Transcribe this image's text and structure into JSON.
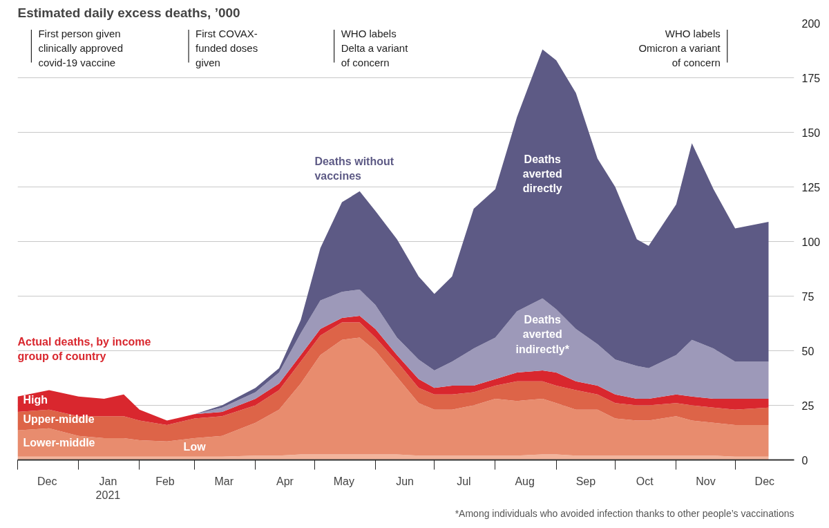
{
  "chart_data": {
    "type": "area",
    "stacked": true,
    "title": "Estimated daily excess deaths, ’000",
    "x": [
      "2020-12-01",
      "2020-12-17",
      "2021-01-01",
      "2021-01-14",
      "2021-01-24",
      "2021-02-01",
      "2021-02-15",
      "2021-03-01",
      "2021-03-15",
      "2021-04-01",
      "2021-04-13",
      "2021-04-24",
      "2021-05-04",
      "2021-05-15",
      "2021-05-24",
      "2021-06-01",
      "2021-06-12",
      "2021-06-23",
      "2021-07-01",
      "2021-07-10",
      "2021-07-21",
      "2021-08-01",
      "2021-08-12",
      "2021-08-25",
      "2021-09-01",
      "2021-09-11",
      "2021-09-22",
      "2021-10-01",
      "2021-10-12",
      "2021-10-18",
      "2021-11-01",
      "2021-11-09",
      "2021-11-20",
      "2021-12-01",
      "2021-12-18"
    ],
    "series": [
      {
        "name": "Low",
        "color": "#f2b49c",
        "values": [
          1.5,
          1.5,
          1.5,
          1.5,
          1.5,
          1.5,
          1.5,
          1.5,
          1.5,
          2,
          2,
          2.5,
          2.5,
          2.5,
          2.5,
          2.5,
          2.5,
          2,
          2,
          2,
          2,
          2,
          2,
          2.5,
          2.5,
          2,
          2,
          2,
          2,
          2,
          2,
          2,
          2,
          1.5,
          1.5
        ]
      },
      {
        "name": "Lower-middle",
        "color": "#e88c6e",
        "values": [
          12,
          13,
          9.5,
          8.5,
          8.5,
          7.5,
          7,
          8.5,
          9.5,
          15,
          21,
          32.5,
          45.5,
          52.5,
          53.5,
          47.5,
          35.5,
          24,
          21,
          21,
          23,
          26,
          25,
          25.5,
          23.5,
          21,
          21,
          17,
          16,
          16,
          18,
          16,
          15,
          14.5,
          14.5
        ]
      },
      {
        "name": "Upper-middle",
        "color": "#dd6448",
        "values": [
          8.5,
          8.5,
          9,
          10,
          10,
          9,
          7.5,
          9,
          9,
          8,
          9,
          10,
          9,
          8,
          7,
          6,
          7,
          7,
          7,
          7,
          6,
          6,
          9,
          8,
          8,
          9,
          7,
          7,
          7,
          7,
          6,
          7,
          7,
          7,
          8
        ]
      },
      {
        "name": "High",
        "color": "#d9272e",
        "values": [
          7,
          9,
          9,
          8,
          10,
          5,
          2,
          2,
          2,
          3,
          3,
          3,
          3,
          2,
          3,
          4,
          3,
          4,
          3,
          4,
          3,
          3,
          4,
          5,
          6,
          4,
          4,
          4,
          3,
          3,
          4,
          4,
          4,
          5,
          4
        ]
      },
      {
        "name": "Deaths averted indirectly*",
        "color": "#9d99b9",
        "values": [
          0,
          0,
          0,
          0,
          0,
          0,
          0,
          0,
          2,
          3,
          5,
          10,
          13,
          12,
          12,
          11,
          8,
          9,
          8,
          11,
          17,
          19,
          28,
          33,
          29,
          24,
          19,
          16,
          15,
          14,
          18,
          26,
          23,
          17,
          17
        ]
      },
      {
        "name": "Deaths averted directly",
        "color": "#5d5a85",
        "values": [
          0,
          0,
          0,
          0,
          0,
          0,
          0,
          0,
          1,
          2,
          2,
          6,
          24,
          41,
          45,
          43,
          45,
          38,
          35,
          39,
          64,
          68,
          89,
          114,
          114,
          108,
          85,
          79,
          58,
          56,
          69,
          90,
          73,
          61,
          64
        ]
      }
    ],
    "xlim": [
      "2020-12-01",
      "2021-12-31"
    ],
    "xticks": [
      {
        "value": "2020-12-01",
        "label": null
      },
      {
        "value": "2020-12-16",
        "label": "Dec"
      },
      {
        "value": "2021-01-01",
        "label": null
      },
      {
        "value": "2021-01-16",
        "label": "Jan\n2021"
      },
      {
        "value": "2021-02-01",
        "label": null
      },
      {
        "value": "2021-02-14",
        "label": "Feb"
      },
      {
        "value": "2021-03-01",
        "label": null
      },
      {
        "value": "2021-03-16",
        "label": "Mar"
      },
      {
        "value": "2021-04-01",
        "label": null
      },
      {
        "value": "2021-04-16",
        "label": "Apr"
      },
      {
        "value": "2021-05-01",
        "label": null
      },
      {
        "value": "2021-05-16",
        "label": "May"
      },
      {
        "value": "2021-06-01",
        "label": null
      },
      {
        "value": "2021-06-16",
        "label": "Jun"
      },
      {
        "value": "2021-07-01",
        "label": null
      },
      {
        "value": "2021-07-16",
        "label": "Jul"
      },
      {
        "value": "2021-08-01",
        "label": null
      },
      {
        "value": "2021-08-16",
        "label": "Aug"
      },
      {
        "value": "2021-09-01",
        "label": null
      },
      {
        "value": "2021-09-16",
        "label": "Sep"
      },
      {
        "value": "2021-10-01",
        "label": null
      },
      {
        "value": "2021-10-16",
        "label": "Oct"
      },
      {
        "value": "2021-11-01",
        "label": null
      },
      {
        "value": "2021-11-16",
        "label": "Nov"
      },
      {
        "value": "2021-12-01",
        "label": null
      },
      {
        "value": "2021-12-16",
        "label": "Dec"
      }
    ],
    "ylim": [
      0,
      200
    ],
    "yticks": [
      0,
      25,
      50,
      75,
      100,
      125,
      150,
      175,
      200
    ],
    "grid": "y",
    "ref_lines": [
      {
        "axis": "x",
        "value": "2020-12-08",
        "label": "First person given\nclinically approved\ncovid-19 vaccine"
      },
      {
        "axis": "x",
        "value": "2021-02-26",
        "label": "First COVAX-\nfunded doses\ngiven"
      },
      {
        "axis": "x",
        "value": "2021-05-11",
        "label": "WHO labels\nDelta a variant\nof concern"
      },
      {
        "axis": "x",
        "value": "2021-11-27",
        "label": "WHO labels\nOmicron a variant\nof concern"
      }
    ],
    "annotations": [
      "Deaths without\nvaccines",
      "Actual deaths, by income\ngroup of country",
      "*Among individuals who avoided infection thanks to other people’s vaccinations"
    ]
  }
}
